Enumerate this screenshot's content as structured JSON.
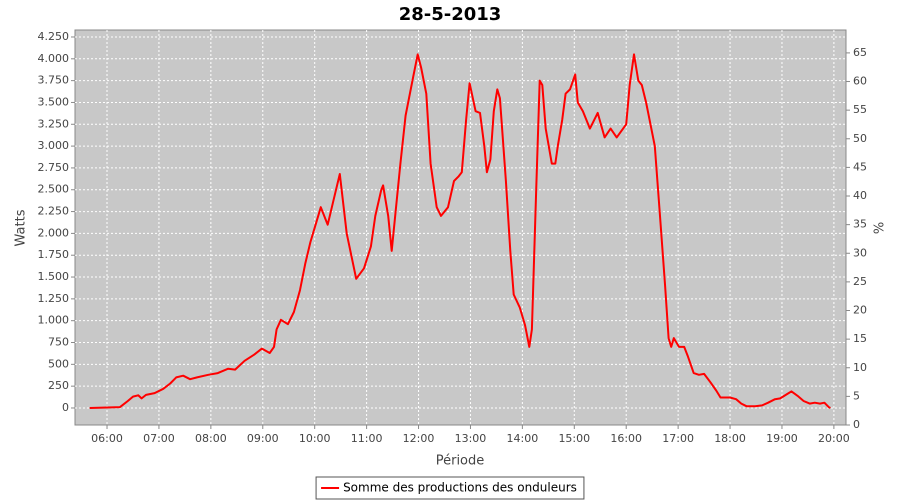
{
  "chart_data": {
    "type": "line",
    "title": "28-5-2013",
    "xlabel": "Période",
    "ylabel": "Watts",
    "y2label": "%",
    "x": [
      "05:40",
      "06:15",
      "06:24",
      "06:30",
      "06:36",
      "06:40",
      "06:45",
      "06:55",
      "07:05",
      "07:13",
      "07:20",
      "07:28",
      "07:36",
      "07:44",
      "07:57",
      "08:08",
      "08:20",
      "08:28",
      "08:39",
      "08:50",
      "08:59",
      "09:08",
      "09:13",
      "09:16",
      "09:21",
      "09:29",
      "09:36",
      "09:43",
      "09:49",
      "09:55",
      "10:01",
      "10:07",
      "10:15",
      "10:21",
      "10:29",
      "10:37",
      "10:48",
      "10:57",
      "11:05",
      "11:10",
      "11:17",
      "11:19",
      "11:25",
      "11:29",
      "11:39",
      "11:45",
      "11:54",
      "11:59",
      "12:03",
      "12:09",
      "12:14",
      "12:21",
      "12:26",
      "12:34",
      "12:41",
      "12:46",
      "12:50",
      "12:55",
      "12:59",
      "13:06",
      "13:11",
      "13:16",
      "13:19",
      "13:23",
      "13:27",
      "13:31",
      "13:34",
      "13:41",
      "13:46",
      "13:50",
      "13:57",
      "14:03",
      "14:08",
      "14:11",
      "14:16",
      "14:20",
      "14:23",
      "14:27",
      "14:34",
      "14:38",
      "14:41",
      "14:46",
      "14:50",
      "14:55",
      "15:01",
      "15:04",
      "15:10",
      "15:18",
      "15:27",
      "15:35",
      "15:42",
      "15:49",
      "16:00",
      "16:04",
      "16:09",
      "16:14",
      "16:18",
      "16:23",
      "16:27",
      "16:33",
      "16:39",
      "16:45",
      "16:49",
      "16:52",
      "16:55",
      "17:01",
      "17:07",
      "17:11",
      "17:18",
      "17:24",
      "17:30",
      "17:37",
      "17:44",
      "17:49",
      "18:00",
      "18:07",
      "18:13",
      "18:19",
      "18:29",
      "18:37",
      "18:44",
      "18:52",
      "18:58",
      "19:06",
      "19:11",
      "19:18",
      "19:25",
      "19:32",
      "19:38",
      "19:44",
      "19:49",
      "19:54",
      "19:56"
    ],
    "series": [
      {
        "name": "Somme des productions des onduleurs",
        "color": "#ff0000",
        "values": [
          0,
          10,
          80,
          130,
          145,
          110,
          150,
          170,
          220,
          280,
          350,
          370,
          330,
          350,
          380,
          400,
          450,
          440,
          540,
          610,
          680,
          630,
          700,
          900,
          1010,
          960,
          1100,
          1350,
          1650,
          1900,
          2100,
          2300,
          2100,
          2350,
          2680,
          2000,
          1480,
          1600,
          1850,
          2200,
          2500,
          2550,
          2200,
          1800,
          2800,
          3350,
          3800,
          4050,
          3900,
          3600,
          2800,
          2300,
          2200,
          2300,
          2600,
          2650,
          2700,
          3300,
          3720,
          3400,
          3380,
          3000,
          2700,
          2850,
          3400,
          3650,
          3550,
          2600,
          1800,
          1300,
          1150,
          950,
          700,
          900,
          2500,
          3750,
          3700,
          3200,
          2800,
          2800,
          3000,
          3300,
          3600,
          3650,
          3820,
          3500,
          3400,
          3200,
          3380,
          3100,
          3200,
          3100,
          3250,
          3700,
          4050,
          3750,
          3700,
          3500,
          3300,
          3000,
          2200,
          1400,
          800,
          700,
          800,
          700,
          700,
          600,
          400,
          380,
          390,
          300,
          200,
          120,
          120,
          100,
          50,
          20,
          20,
          30,
          60,
          100,
          110,
          160,
          190,
          140,
          80,
          50,
          60,
          50,
          60,
          10,
          0
        ]
      }
    ],
    "xlim": [
      "05:23",
      "20:14"
    ],
    "xticks": [
      "06:00",
      "07:00",
      "08:00",
      "09:00",
      "10:00",
      "11:00",
      "12:00",
      "13:00",
      "14:00",
      "15:00",
      "16:00",
      "17:00",
      "18:00",
      "19:00",
      "20:00"
    ],
    "ylim": [
      -195,
      4330
    ],
    "yticks": [
      0,
      250,
      500,
      750,
      {
        "value": 1000,
        "label": "1.000"
      },
      {
        "value": 1250,
        "label": "1.250"
      },
      {
        "value": 1500,
        "label": "1.500"
      },
      {
        "value": 1750,
        "label": "1.750"
      },
      {
        "value": 2000,
        "label": "2.000"
      },
      {
        "value": 2250,
        "label": "2.250"
      },
      {
        "value": 2500,
        "label": "2.500"
      },
      {
        "value": 2750,
        "label": "2.750"
      },
      {
        "value": 3000,
        "label": "3.000"
      },
      {
        "value": 3250,
        "label": "3.250"
      },
      {
        "value": 3500,
        "label": "3.500"
      },
      {
        "value": 3750,
        "label": "3.750"
      },
      {
        "value": 4000,
        "label": "4.000"
      },
      {
        "value": 4250,
        "label": "4.250"
      }
    ],
    "y2lim": [
      0,
      69
    ],
    "y2ticks": [
      0,
      5,
      10,
      15,
      20,
      25,
      30,
      35,
      40,
      45,
      50,
      55,
      60,
      65
    ],
    "grid": true,
    "background": "#c8c8c8",
    "legend": "bottom"
  }
}
